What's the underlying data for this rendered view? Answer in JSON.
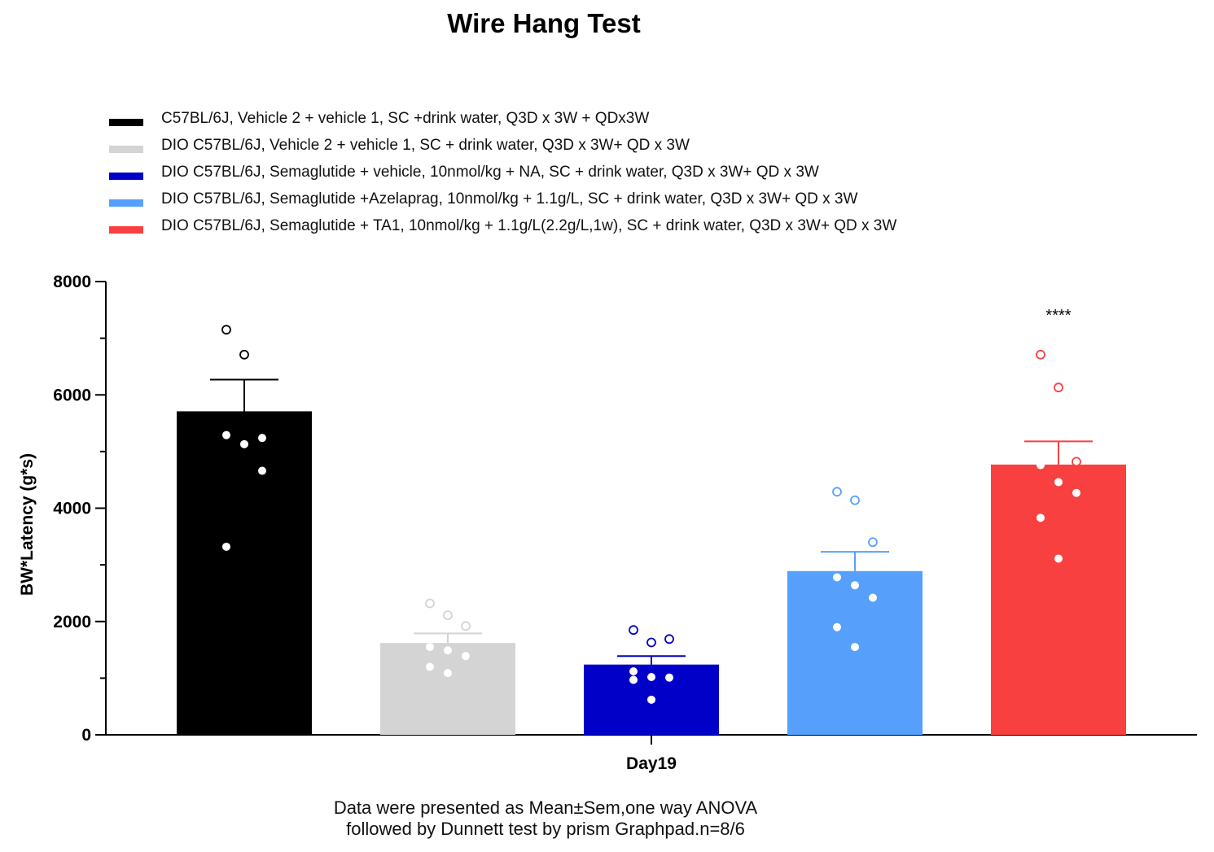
{
  "title": "Wire Hang Test",
  "footnote": {
    "line1": "Data were presented as Mean±Sem,one way ANOVA",
    "line2": "followed by Dunnett test by prism Graphpad.n=8/6"
  },
  "chart_data": {
    "type": "bar",
    "title": "Wire Hang Test",
    "xlabel": "Day19",
    "ylabel": "BW*Latency (g*s)",
    "ylim": [
      0,
      8000
    ],
    "yticks": [
      0,
      2000,
      4000,
      6000,
      8000
    ],
    "grid": false,
    "legend_position": "top",
    "categories": [
      "Day19"
    ],
    "series": [
      {
        "name": "C57BL/6J, Vehicle 2 + vehicle 1,  SC +drink water, Q3D x 3W + QDx3W",
        "color": "#000000",
        "mean": 5710,
        "sem": 560,
        "points": [
          7150,
          6710,
          5240,
          5290,
          5130,
          4660,
          3320
        ],
        "significance": ""
      },
      {
        "name": "DIO C57BL/6J, Vehicle 2 + vehicle 1, SC + drink water, Q3D x 3W+ QD x 3W",
        "color": "#d4d4d4",
        "mean": 1620,
        "sem": 170,
        "points": [
          2320,
          2110,
          1920,
          1550,
          1490,
          1390,
          1200,
          1090
        ],
        "significance": ""
      },
      {
        "name": "DIO C57BL/6J, Semaglutide + vehicle, 10nmol/kg + NA, SC + drink water, Q3D x 3W+ QD x 3W",
        "color": "#0000c8",
        "mean": 1240,
        "sem": 150,
        "points": [
          1850,
          1630,
          1690,
          1120,
          1020,
          1010,
          970,
          620
        ],
        "significance": ""
      },
      {
        "name": "DIO C57BL/6J, Semaglutide +Azelaprag, 10nmol/kg + 1.1g/L, SC + drink water, Q3D x 3W+ QD x 3W",
        "color": "#56a0fc",
        "mean": 2890,
        "sem": 340,
        "points": [
          4290,
          4140,
          3400,
          2780,
          2640,
          2420,
          1900,
          1550
        ],
        "significance": ""
      },
      {
        "name": "DIO C57BL/6J, Semaglutide + TA1, 10nmol/kg + 1.1g/L(2.2g/L,1w), SC + drink water, Q3D x 3W+ QD x 3W",
        "color": "#f84040",
        "mean": 4770,
        "sem": 410,
        "points": [
          6710,
          6130,
          4820,
          4760,
          4460,
          4270,
          3830,
          3110
        ],
        "significance": "****"
      }
    ]
  }
}
